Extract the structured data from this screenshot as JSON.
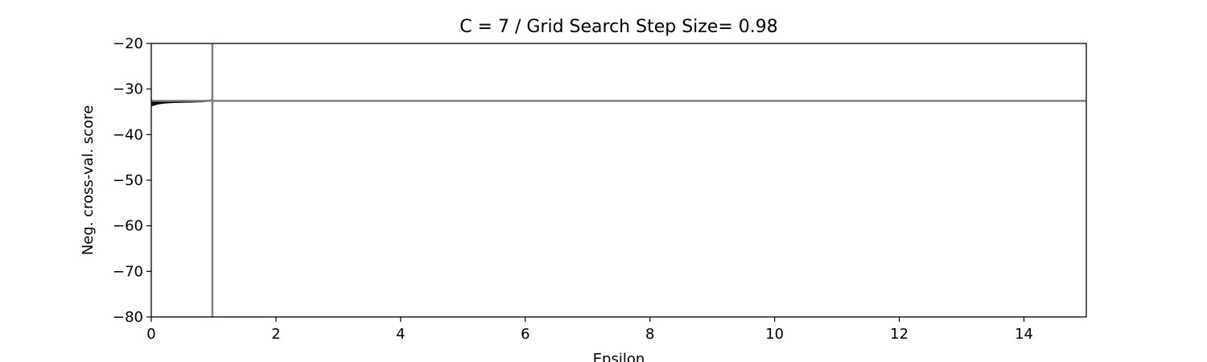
{
  "chart_data": {
    "type": "line",
    "title": "C = 7 / Grid Search Step Size= 0.98",
    "xlabel": "Epsilon",
    "ylabel": "Neg. cross-val. score",
    "xlim": [
      0,
      15
    ],
    "ylim": [
      -80,
      -20
    ],
    "xticks": [
      0,
      2,
      4,
      6,
      8,
      10,
      12,
      14
    ],
    "yticks": [
      -80,
      -70,
      -60,
      -50,
      -40,
      -30,
      -20
    ],
    "grid": false,
    "series": [
      {
        "color": "#000000",
        "x": [
          0.0,
          0.05,
          0.1,
          0.2,
          0.3,
          0.4,
          0.5,
          0.6,
          0.7,
          0.8,
          0.9,
          0.98
        ],
        "y": [
          -33.6,
          -33.4,
          -33.2,
          -33.0,
          -32.9,
          -32.85,
          -32.8,
          -32.8,
          -32.75,
          -32.7,
          -32.6,
          -32.5
        ]
      },
      {
        "color": "#000000",
        "x": [
          0.0,
          0.05,
          0.1,
          0.2,
          0.3,
          0.4,
          0.5,
          0.6,
          0.7,
          0.8,
          0.9,
          0.98
        ],
        "y": [
          -33.1,
          -33.0,
          -32.95,
          -32.9,
          -32.85,
          -32.8,
          -32.8,
          -32.75,
          -32.7,
          -32.65,
          -32.6,
          -32.5
        ]
      },
      {
        "color": "#000000",
        "x": [
          0.0,
          0.1,
          0.2,
          0.4,
          0.6,
          0.8,
          0.98
        ],
        "y": [
          -32.9,
          -32.85,
          -32.8,
          -32.8,
          -32.75,
          -32.65,
          -32.5
        ]
      }
    ],
    "reference_lines": {
      "color": "#808080",
      "vertical_x": 0.98,
      "horizontal_y": -32.6
    }
  }
}
